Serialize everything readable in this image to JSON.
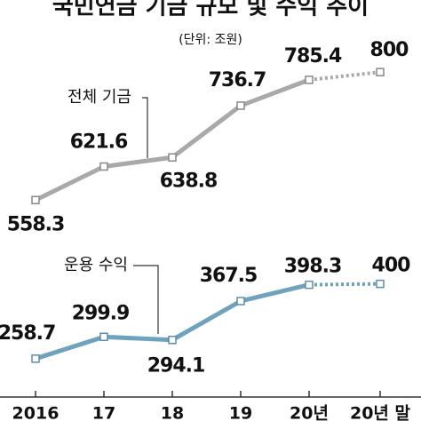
{
  "chart_data": {
    "type": "line",
    "title": "국민연금 기금 규모 및 수익 추이",
    "subtitle": "(단위: 조원)",
    "categories": [
      "2016",
      "17",
      "18",
      "19",
      "20년",
      "20년 말"
    ],
    "series": [
      {
        "name": "전체 기금",
        "color": "#a9a9a9",
        "values": [
          558.3,
          621.6,
          638.8,
          736.7,
          785.4,
          800
        ]
      },
      {
        "name": "운용 수익",
        "color": "#6fa3bd",
        "values": [
          258.7,
          299.9,
          294.1,
          367.5,
          398.3,
          400
        ]
      }
    ]
  }
}
